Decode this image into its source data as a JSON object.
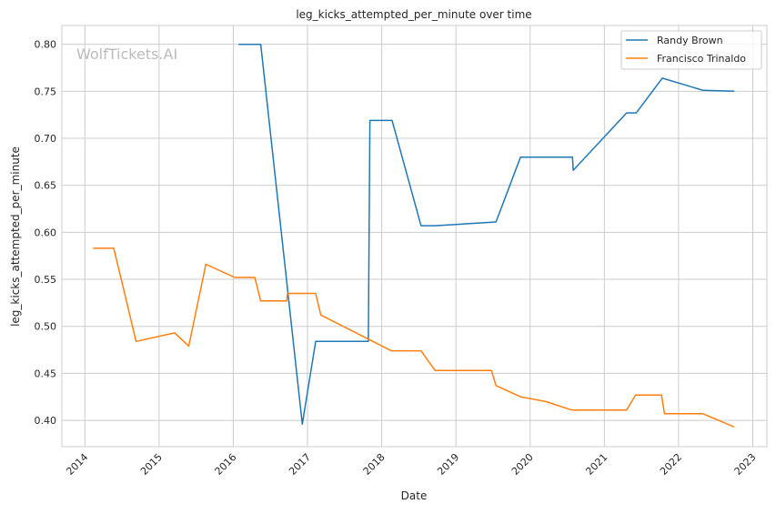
{
  "chart_data": {
    "type": "line",
    "title": "leg_kicks_attempted_per_minute over time",
    "xlabel": "Date",
    "ylabel": "leg_kicks_attempted_per_minute",
    "watermark": "WolfTickets.AI",
    "xlim": [
      2013.69,
      2023.19
    ],
    "ylim": [
      0.372,
      0.82
    ],
    "x_ticks": [
      2014,
      2015,
      2016,
      2017,
      2018,
      2019,
      2020,
      2021,
      2022,
      2023
    ],
    "x_tick_labels": [
      "2014",
      "2015",
      "2016",
      "2017",
      "2018",
      "2019",
      "2020",
      "2021",
      "2022",
      "2023"
    ],
    "y_ticks": [
      0.4,
      0.45,
      0.5,
      0.55,
      0.6,
      0.65,
      0.7,
      0.75,
      0.8
    ],
    "y_tick_labels": [
      "0.40",
      "0.45",
      "0.50",
      "0.55",
      "0.60",
      "0.65",
      "0.70",
      "0.75",
      "0.80"
    ],
    "grid": true,
    "legend_position": "top-right",
    "series": [
      {
        "name": "Randy Brown",
        "color": "#1f77b4",
        "x": [
          2016.07,
          2016.37,
          2016.93,
          2017.11,
          2017.82,
          2017.84,
          2018.14,
          2018.53,
          2018.72,
          2019.54,
          2019.87,
          2020.57,
          2020.58,
          2021.3,
          2021.43,
          2021.78,
          2022.33,
          2022.75
        ],
        "y": [
          0.8,
          0.8,
          0.396,
          0.484,
          0.484,
          0.719,
          0.719,
          0.607,
          0.607,
          0.611,
          0.68,
          0.68,
          0.666,
          0.727,
          0.727,
          0.764,
          0.751,
          0.75
        ]
      },
      {
        "name": "Francisco Trinaldo",
        "color": "#ff7f0e",
        "x": [
          2014.11,
          2014.39,
          2014.69,
          2015.21,
          2015.4,
          2015.63,
          2016.02,
          2016.29,
          2016.37,
          2016.72,
          2016.73,
          2017.11,
          2017.18,
          2018.13,
          2018.53,
          2018.72,
          2019.48,
          2019.54,
          2019.87,
          2020.21,
          2020.56,
          2021.3,
          2021.42,
          2021.77,
          2021.81,
          2022.33,
          2022.75
        ],
        "y": [
          0.583,
          0.583,
          0.484,
          0.493,
          0.479,
          0.566,
          0.552,
          0.552,
          0.527,
          0.527,
          0.535,
          0.535,
          0.512,
          0.474,
          0.474,
          0.453,
          0.453,
          0.437,
          0.425,
          0.42,
          0.411,
          0.411,
          0.427,
          0.427,
          0.407,
          0.407,
          0.393
        ]
      }
    ]
  }
}
